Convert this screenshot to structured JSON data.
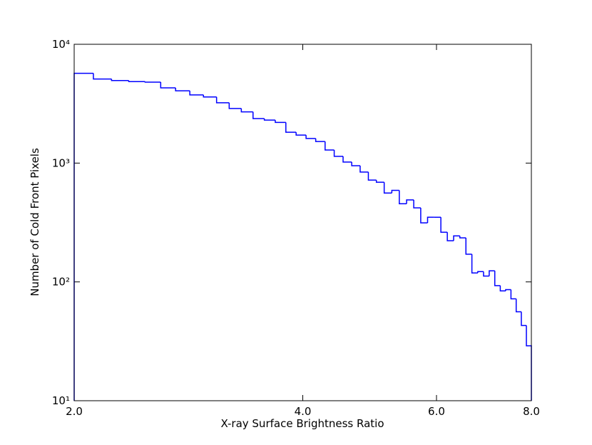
{
  "chart_data": {
    "type": "histogram",
    "xlabel": "X-ray Surface Brightness Ratio",
    "ylabel": "Number of Cold Front Pixels",
    "bins": [
      2,
      2.12,
      2.24,
      2.36,
      2.48,
      2.6,
      2.72,
      2.84,
      2.96,
      3.08,
      3.2,
      3.32,
      3.44,
      3.56,
      3.68,
      3.8,
      3.92,
      4.04,
      4.16,
      4.28,
      4.4,
      4.52,
      4.64,
      4.76,
      4.88,
      5,
      5.12,
      5.24,
      5.36,
      5.48,
      5.6,
      5.72,
      5.84,
      5.96,
      6.08,
      6.2,
      6.32,
      6.44,
      6.56,
      6.68,
      6.8,
      6.92,
      7.04,
      7.16,
      7.28,
      7.4,
      7.52,
      7.64,
      7.76,
      7.88,
      8
    ],
    "values": [
      5700,
      5100,
      4950,
      4850,
      4800,
      4300,
      4060,
      3750,
      3600,
      3220,
      2880,
      2700,
      2370,
      2300,
      2200,
      1820,
      1720,
      1610,
      1520,
      1290,
      1140,
      1020,
      950,
      840,
      720,
      690,
      560,
      590,
      455,
      490,
      420,
      314,
      350,
      350,
      262,
      222,
      244,
      235,
      171,
      119,
      122,
      112,
      124,
      93,
      84,
      86,
      72,
      56,
      43,
      29
    ],
    "color": "#0000ff",
    "xlog": true,
    "ylog": true,
    "xlim": [
      2,
      8
    ],
    "xticks": [
      {
        "value": 2,
        "label": "2.0"
      },
      {
        "value": 4,
        "label": "4.0"
      },
      {
        "value": 6,
        "label": "6.0"
      },
      {
        "value": 8,
        "label": "8.0"
      }
    ],
    "ylim": [
      10,
      10000
    ],
    "yticks": [
      {
        "value": 10,
        "label": "10¹"
      },
      {
        "value": 100,
        "label": "10²"
      },
      {
        "value": 1000,
        "label": "10³"
      },
      {
        "value": 10000,
        "label": "10⁴"
      }
    ]
  }
}
